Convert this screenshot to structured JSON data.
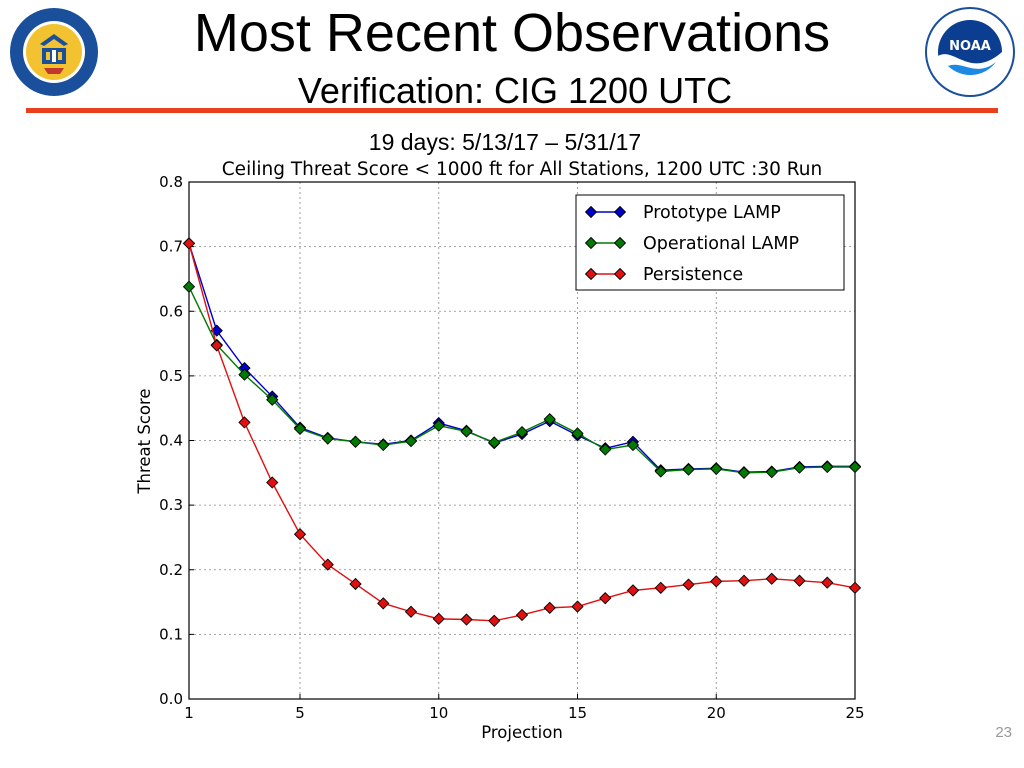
{
  "slide": {
    "title": "Most Recent Observations",
    "subtitle": "Verification: CIG 1200 UTC",
    "period": "19 days: 5/13/17 – 5/31/17",
    "page_number": "23",
    "accent_color": "#e8401c",
    "logo_left_icon": "department-of-commerce-seal-icon",
    "logo_right_icon": "noaa-logo-icon"
  },
  "chart_data": {
    "type": "line",
    "title": "Ceiling Threat Score < 1000 ft for All Stations, 1200 UTC :30 Run",
    "xlabel": "Projection",
    "ylabel": "Threat Score",
    "xlim": [
      1,
      25
    ],
    "ylim": [
      0.0,
      0.8
    ],
    "xticks": [
      1,
      5,
      10,
      15,
      20,
      25
    ],
    "yticks": [
      0.0,
      0.1,
      0.2,
      0.3,
      0.4,
      0.5,
      0.6,
      0.7,
      0.8
    ],
    "grid": true,
    "legend_position": "top-right",
    "x": [
      1,
      2,
      3,
      4,
      5,
      6,
      7,
      8,
      9,
      10,
      11,
      12,
      13,
      14,
      15,
      16,
      17,
      18,
      19,
      20,
      21,
      22,
      23,
      24,
      25
    ],
    "series": [
      {
        "name": "Prototype LAMP",
        "color": "#0000cc",
        "values": [
          0.705,
          0.57,
          0.512,
          0.468,
          0.42,
          0.404,
          0.398,
          0.394,
          0.4,
          0.427,
          0.415,
          0.396,
          0.41,
          0.43,
          0.408,
          0.388,
          0.398,
          0.354,
          0.356,
          0.357,
          0.351,
          0.352,
          0.359,
          0.36,
          0.36
        ]
      },
      {
        "name": "Operational LAMP",
        "color": "#007a00",
        "values": [
          0.638,
          0.548,
          0.502,
          0.463,
          0.418,
          0.403,
          0.398,
          0.393,
          0.399,
          0.423,
          0.414,
          0.397,
          0.413,
          0.433,
          0.411,
          0.386,
          0.393,
          0.352,
          0.355,
          0.356,
          0.35,
          0.351,
          0.358,
          0.359,
          0.359
        ]
      },
      {
        "name": "Persistence",
        "color": "#e01010",
        "values": [
          0.705,
          0.547,
          0.428,
          0.335,
          0.255,
          0.208,
          0.178,
          0.148,
          0.135,
          0.124,
          0.123,
          0.121,
          0.13,
          0.141,
          0.143,
          0.156,
          0.168,
          0.172,
          0.177,
          0.182,
          0.183,
          0.186,
          0.183,
          0.18,
          0.172
        ]
      }
    ]
  }
}
